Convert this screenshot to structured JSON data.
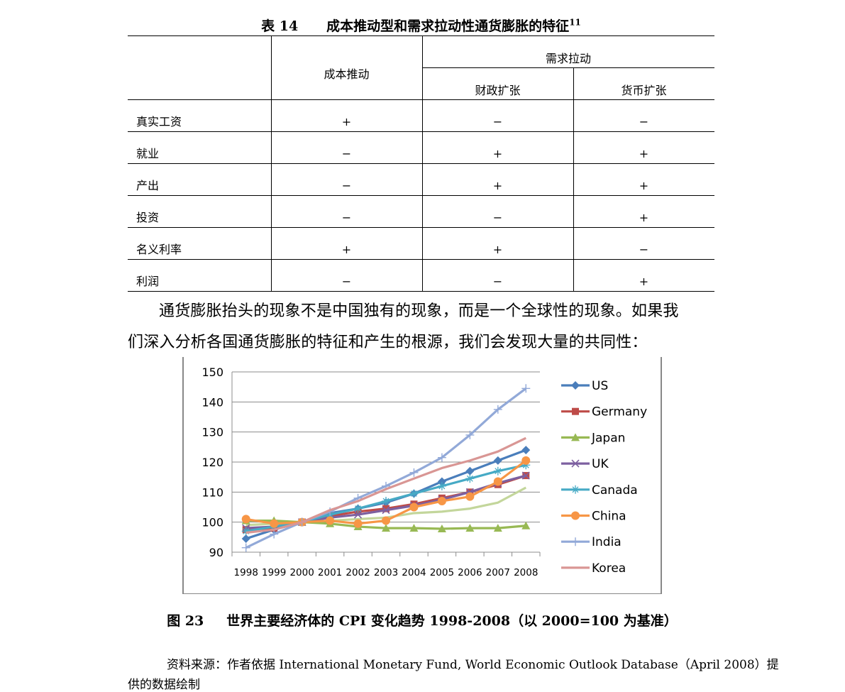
{
  "table": {
    "number": "表 14",
    "title": "成本推动型和需求拉动性通货膨胀的特征",
    "footnote": "11",
    "header": {
      "cost_push": "成本推动",
      "demand_pull": "需求拉动",
      "fiscal": "财政扩张",
      "monetary": "货币扩张"
    },
    "rows": [
      {
        "label": "真实工资",
        "cost": "+",
        "fiscal": "−",
        "monetary": "−"
      },
      {
        "label": "就业",
        "cost": "−",
        "fiscal": "+",
        "monetary": "+"
      },
      {
        "label": "产出",
        "cost": "−",
        "fiscal": "+",
        "monetary": "+"
      },
      {
        "label": "投资",
        "cost": "−",
        "fiscal": "−",
        "monetary": "+"
      },
      {
        "label": "名义利率",
        "cost": "+",
        "fiscal": "+",
        "monetary": "−"
      },
      {
        "label": "利润",
        "cost": "−",
        "fiscal": "−",
        "monetary": "+"
      }
    ]
  },
  "paragraph": {
    "line1": "通货膨胀抬头的现象不是中国独有的现象，而是一个全球性的现象。如果我",
    "line2": "们深入分析各国通货膨胀的特征和产生的根源，我们会发现大量的共同性："
  },
  "chart_data": {
    "type": "line",
    "title": "",
    "xlabel": "",
    "ylabel": "",
    "ylim": [
      90,
      150
    ],
    "yticks": [
      90,
      100,
      110,
      120,
      130,
      140,
      150
    ],
    "categories": [
      "1998",
      "1999",
      "2000",
      "2001",
      "2002",
      "2003",
      "2004",
      "2005",
      "2006",
      "2007",
      "2008"
    ],
    "grid": true,
    "legend_position": "right",
    "series": [
      {
        "name": "US",
        "color": "#4a7ebb",
        "marker": "diamond",
        "values": [
          94.5,
          97.5,
          100,
          103,
          104.5,
          106.5,
          109.5,
          113.5,
          117,
          120.5,
          124
        ]
      },
      {
        "name": "Germany",
        "color": "#be4b48",
        "marker": "square",
        "values": [
          97.5,
          98,
          100,
          102,
          103.5,
          104.5,
          106,
          108,
          110,
          112.5,
          115.5
        ]
      },
      {
        "name": "Japan",
        "color": "#98b954",
        "marker": "triangle",
        "values": [
          100.5,
          100.5,
          100,
          99.5,
          98.5,
          98,
          98,
          97.8,
          98,
          98,
          98.8
        ]
      },
      {
        "name": "UK",
        "color": "#7d60a0",
        "marker": "x",
        "values": [
          98,
          98.5,
          100,
          101.5,
          102.5,
          104,
          105.5,
          107.5,
          110,
          113,
          115.5
        ]
      },
      {
        "name": "Canada",
        "color": "#46aac5",
        "marker": "star",
        "values": [
          97,
          98.5,
          100,
          102.5,
          104.5,
          107,
          109.5,
          112,
          114.5,
          117,
          119
        ]
      },
      {
        "name": "China",
        "color": "#f79646",
        "marker": "circle",
        "values": [
          101,
          99.5,
          100,
          100.5,
          99.5,
          100.5,
          105,
          107,
          108.5,
          113.5,
          120.5
        ]
      },
      {
        "name": "India",
        "color": "#92a9d8",
        "marker": "plus",
        "values": [
          91.5,
          96,
          100,
          103.5,
          108,
          112,
          116.5,
          121.5,
          129,
          137.5,
          144.5
        ]
      },
      {
        "name": "Korea",
        "color": "#d99694",
        "marker": "none",
        "values": [
          96.5,
          97.5,
          100,
          104,
          107,
          111,
          114.5,
          118,
          120.5,
          123.5,
          128
        ]
      },
      {
        "name": "",
        "color": "#c3d69b",
        "marker": "none",
        "values": [
          99,
          99.5,
          100,
          100.5,
          101,
          101.5,
          103,
          103.5,
          104.5,
          106.5,
          111.5
        ]
      }
    ]
  },
  "figure": {
    "number": "图 23",
    "caption": "世界主要经济体的 CPI 变化趋势 1998-2008（以 2000=100 为基准）"
  },
  "source": {
    "line1": "资料来源：作者依据 International Monetary Fund, World Economic Outlook Database（April 2008）提",
    "line2": "供的数据绘制"
  }
}
